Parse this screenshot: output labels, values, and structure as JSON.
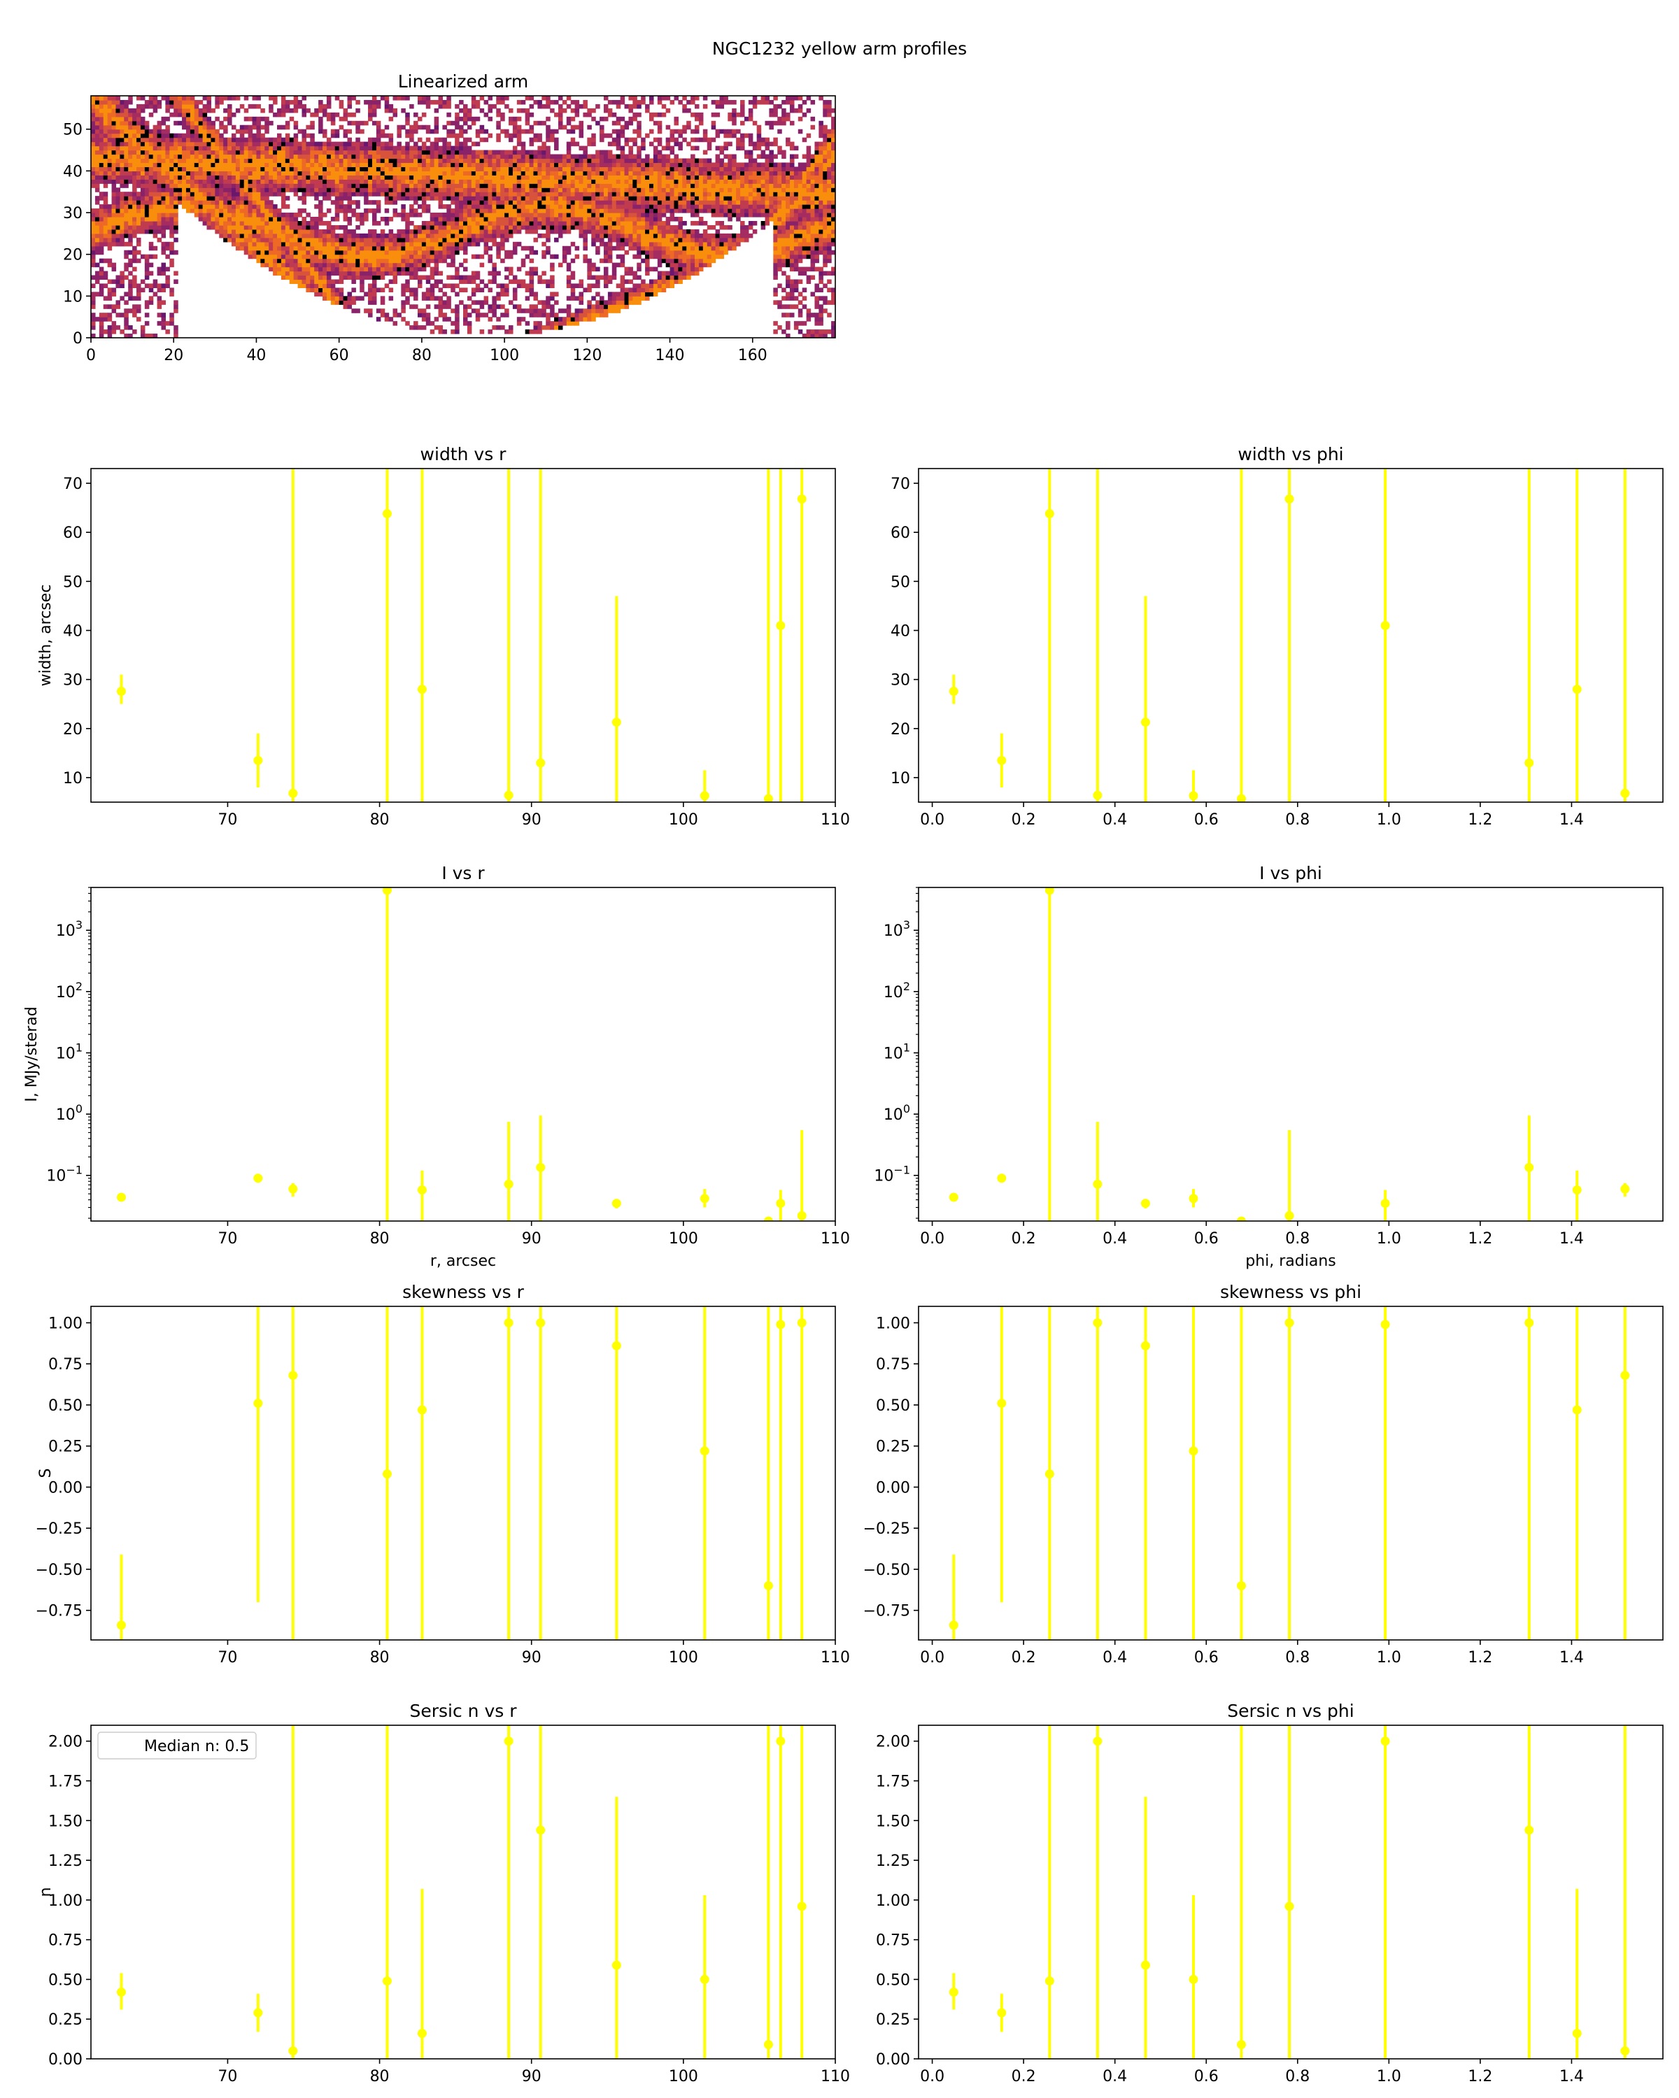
{
  "figure": {
    "suptitle": "NGC1232 yellow arm profiles",
    "marker_color": "#ffff00"
  },
  "image_panel": {
    "title": "Linearized arm",
    "xticks": [
      "0",
      "20",
      "40",
      "60",
      "80",
      "100",
      "120",
      "140",
      "160"
    ],
    "yticks": [
      "0",
      "10",
      "20",
      "30",
      "40",
      "50"
    ],
    "xlim": [
      0,
      180
    ],
    "ylim": [
      0,
      58
    ],
    "colormap": "inferno"
  },
  "chart_data": [
    {
      "type": "scatter",
      "title": "width vs r",
      "xlabel": "",
      "ylabel": "width, arcsec",
      "xlim": [
        61,
        110
      ],
      "ylim": [
        5,
        73
      ],
      "yscale": "linear",
      "xticks": [
        "70",
        "80",
        "90",
        "100",
        "110"
      ],
      "yticks": [
        "10",
        "20",
        "30",
        "40",
        "50",
        "60",
        "70"
      ],
      "points": [
        {
          "x": 63,
          "y": 27.6,
          "lo": 25,
          "hi": 31
        },
        {
          "x": 72,
          "y": 13.5,
          "lo": 8,
          "hi": 19
        },
        {
          "x": 74.3,
          "y": 6.8,
          "lo": 5,
          "hi": 73
        },
        {
          "x": 80.5,
          "y": 63.8,
          "lo": 5,
          "hi": 73
        },
        {
          "x": 82.8,
          "y": 28,
          "lo": 5,
          "hi": 73
        },
        {
          "x": 88.5,
          "y": 6.4,
          "lo": 5,
          "hi": 73
        },
        {
          "x": 90.6,
          "y": 13,
          "lo": 5,
          "hi": 73
        },
        {
          "x": 95.6,
          "y": 21.3,
          "lo": 5,
          "hi": 47
        },
        {
          "x": 101.4,
          "y": 6.3,
          "lo": 5,
          "hi": 11.5
        },
        {
          "x": 105.6,
          "y": 5.7,
          "lo": 5,
          "hi": 73
        },
        {
          "x": 106.4,
          "y": 41,
          "lo": 5,
          "hi": 73
        },
        {
          "x": 107.8,
          "y": 66.8,
          "lo": 5,
          "hi": 73
        }
      ]
    },
    {
      "type": "scatter",
      "title": "width vs phi",
      "xlabel": "",
      "ylabel": "",
      "xlim": [
        -0.03,
        1.6
      ],
      "ylim": [
        5,
        73
      ],
      "yscale": "linear",
      "xticks": [
        "0.0",
        "0.2",
        "0.4",
        "0.6",
        "0.8",
        "1.0",
        "1.2",
        "1.4"
      ],
      "yticks": [
        "10",
        "20",
        "30",
        "40",
        "50",
        "60",
        "70"
      ],
      "points": [
        {
          "x": 0.047,
          "y": 27.6,
          "lo": 25,
          "hi": 31
        },
        {
          "x": 0.152,
          "y": 13.5,
          "lo": 8,
          "hi": 19
        },
        {
          "x": 0.257,
          "y": 63.8,
          "lo": 5,
          "hi": 73
        },
        {
          "x": 0.362,
          "y": 6.4,
          "lo": 5,
          "hi": 73
        },
        {
          "x": 0.467,
          "y": 21.3,
          "lo": 5,
          "hi": 47
        },
        {
          "x": 0.572,
          "y": 6.3,
          "lo": 5,
          "hi": 11.5
        },
        {
          "x": 0.677,
          "y": 5.7,
          "lo": 5,
          "hi": 73
        },
        {
          "x": 0.782,
          "y": 66.8,
          "lo": 5,
          "hi": 73
        },
        {
          "x": 0.992,
          "y": 41,
          "lo": 5,
          "hi": 73
        },
        {
          "x": 1.307,
          "y": 13,
          "lo": 5,
          "hi": 73
        },
        {
          "x": 1.412,
          "y": 28,
          "lo": 5,
          "hi": 73
        },
        {
          "x": 1.517,
          "y": 6.8,
          "lo": 5,
          "hi": 73
        }
      ]
    },
    {
      "type": "scatter",
      "title": "I vs r",
      "xlabel": "r, arcsec",
      "ylabel": "I, MJy/sterad",
      "xlim": [
        61,
        110
      ],
      "ylim": [
        0.018,
        5000
      ],
      "yscale": "log",
      "xticks": [
        "70",
        "80",
        "90",
        "100",
        "110"
      ],
      "yticks": [
        {
          "mant": "10",
          "exp": "−1",
          "v": 0.1
        },
        {
          "mant": "10",
          "exp": "0",
          "v": 1
        },
        {
          "mant": "10",
          "exp": "1",
          "v": 10
        },
        {
          "mant": "10",
          "exp": "2",
          "v": 100
        },
        {
          "mant": "10",
          "exp": "3",
          "v": 1000
        }
      ],
      "points": [
        {
          "x": 63,
          "y": 0.044,
          "lo": 0.04,
          "hi": 0.048
        },
        {
          "x": 72,
          "y": 0.09,
          "lo": 0.082,
          "hi": 0.098
        },
        {
          "x": 74.3,
          "y": 0.06,
          "lo": 0.045,
          "hi": 0.075
        },
        {
          "x": 80.5,
          "y": 4500,
          "lo": 0.018,
          "hi": 5000
        },
        {
          "x": 82.8,
          "y": 0.058,
          "lo": 0.018,
          "hi": 0.12
        },
        {
          "x": 88.5,
          "y": 0.072,
          "lo": 0.018,
          "hi": 0.75
        },
        {
          "x": 90.6,
          "y": 0.135,
          "lo": 0.018,
          "hi": 0.95
        },
        {
          "x": 95.6,
          "y": 0.035,
          "lo": 0.029,
          "hi": 0.041
        },
        {
          "x": 101.4,
          "y": 0.042,
          "lo": 0.03,
          "hi": 0.06
        },
        {
          "x": 105.6,
          "y": 0.018,
          "lo": 0.016,
          "hi": 0.02
        },
        {
          "x": 106.4,
          "y": 0.035,
          "lo": 0.018,
          "hi": 0.058
        },
        {
          "x": 107.8,
          "y": 0.022,
          "lo": 0.018,
          "hi": 0.55
        }
      ]
    },
    {
      "type": "scatter",
      "title": "I vs phi",
      "xlabel": "phi, radians",
      "ylabel": "",
      "xlim": [
        -0.03,
        1.6
      ],
      "ylim": [
        0.018,
        5000
      ],
      "yscale": "log",
      "xticks": [
        "0.0",
        "0.2",
        "0.4",
        "0.6",
        "0.8",
        "1.0",
        "1.2",
        "1.4"
      ],
      "yticks": [
        {
          "mant": "10",
          "exp": "−1",
          "v": 0.1
        },
        {
          "mant": "10",
          "exp": "0",
          "v": 1
        },
        {
          "mant": "10",
          "exp": "1",
          "v": 10
        },
        {
          "mant": "10",
          "exp": "2",
          "v": 100
        },
        {
          "mant": "10",
          "exp": "3",
          "v": 1000
        }
      ],
      "points": [
        {
          "x": 0.047,
          "y": 0.044,
          "lo": 0.04,
          "hi": 0.048
        },
        {
          "x": 0.152,
          "y": 0.09,
          "lo": 0.082,
          "hi": 0.098
        },
        {
          "x": 0.257,
          "y": 4500,
          "lo": 0.018,
          "hi": 5000
        },
        {
          "x": 0.362,
          "y": 0.072,
          "lo": 0.018,
          "hi": 0.75
        },
        {
          "x": 0.467,
          "y": 0.035,
          "lo": 0.029,
          "hi": 0.041
        },
        {
          "x": 0.572,
          "y": 0.042,
          "lo": 0.03,
          "hi": 0.06
        },
        {
          "x": 0.677,
          "y": 0.018,
          "lo": 0.016,
          "hi": 0.02
        },
        {
          "x": 0.782,
          "y": 0.022,
          "lo": 0.018,
          "hi": 0.55
        },
        {
          "x": 0.992,
          "y": 0.035,
          "lo": 0.018,
          "hi": 0.058
        },
        {
          "x": 1.307,
          "y": 0.135,
          "lo": 0.018,
          "hi": 0.95
        },
        {
          "x": 1.412,
          "y": 0.058,
          "lo": 0.018,
          "hi": 0.12
        },
        {
          "x": 1.517,
          "y": 0.06,
          "lo": 0.045,
          "hi": 0.075
        }
      ]
    },
    {
      "type": "scatter",
      "title": "skewness vs r",
      "xlabel": "",
      "ylabel": "S",
      "xlim": [
        61,
        110
      ],
      "ylim": [
        -0.93,
        1.1
      ],
      "yscale": "linear",
      "xticks": [
        "70",
        "80",
        "90",
        "100",
        "110"
      ],
      "yticks": [
        "−0.75",
        "−0.50",
        "−0.25",
        "0.00",
        "0.25",
        "0.50",
        "0.75",
        "1.00"
      ],
      "points": [
        {
          "x": 63,
          "y": -0.84,
          "lo": -0.93,
          "hi": -0.41
        },
        {
          "x": 72,
          "y": 0.51,
          "lo": -0.7,
          "hi": 1.1
        },
        {
          "x": 74.3,
          "y": 0.68,
          "lo": -0.93,
          "hi": 1.1
        },
        {
          "x": 80.5,
          "y": 0.08,
          "lo": -0.93,
          "hi": 1.1
        },
        {
          "x": 82.8,
          "y": 0.47,
          "lo": -0.93,
          "hi": 1.1
        },
        {
          "x": 88.5,
          "y": 1.0,
          "lo": -0.93,
          "hi": 1.1
        },
        {
          "x": 90.6,
          "y": 1.0,
          "lo": -0.93,
          "hi": 1.1
        },
        {
          "x": 95.6,
          "y": 0.86,
          "lo": -0.93,
          "hi": 1.1
        },
        {
          "x": 101.4,
          "y": 0.22,
          "lo": -0.93,
          "hi": 1.1
        },
        {
          "x": 105.6,
          "y": -0.6,
          "lo": -0.93,
          "hi": 1.1
        },
        {
          "x": 106.4,
          "y": 0.99,
          "lo": -0.93,
          "hi": 1.1
        },
        {
          "x": 107.8,
          "y": 1.0,
          "lo": -0.93,
          "hi": 1.1
        }
      ]
    },
    {
      "type": "scatter",
      "title": "skewness vs phi",
      "xlabel": "",
      "ylabel": "",
      "xlim": [
        -0.03,
        1.6
      ],
      "ylim": [
        -0.93,
        1.1
      ],
      "yscale": "linear",
      "xticks": [
        "0.0",
        "0.2",
        "0.4",
        "0.6",
        "0.8",
        "1.0",
        "1.2",
        "1.4"
      ],
      "yticks": [
        "−0.75",
        "−0.50",
        "−0.25",
        "0.00",
        "0.25",
        "0.50",
        "0.75",
        "1.00"
      ],
      "points": [
        {
          "x": 0.047,
          "y": -0.84,
          "lo": -0.93,
          "hi": -0.41
        },
        {
          "x": 0.152,
          "y": 0.51,
          "lo": -0.7,
          "hi": 1.1
        },
        {
          "x": 0.257,
          "y": 0.08,
          "lo": -0.93,
          "hi": 1.1
        },
        {
          "x": 0.362,
          "y": 1.0,
          "lo": -0.93,
          "hi": 1.1
        },
        {
          "x": 0.467,
          "y": 0.86,
          "lo": -0.93,
          "hi": 1.1
        },
        {
          "x": 0.572,
          "y": 0.22,
          "lo": -0.93,
          "hi": 1.1
        },
        {
          "x": 0.677,
          "y": -0.6,
          "lo": -0.93,
          "hi": 1.1
        },
        {
          "x": 0.782,
          "y": 1.0,
          "lo": -0.93,
          "hi": 1.1
        },
        {
          "x": 0.992,
          "y": 0.99,
          "lo": -0.93,
          "hi": 1.1
        },
        {
          "x": 1.307,
          "y": 1.0,
          "lo": -0.93,
          "hi": 1.1
        },
        {
          "x": 1.412,
          "y": 0.47,
          "lo": -0.93,
          "hi": 1.1
        },
        {
          "x": 1.517,
          "y": 0.68,
          "lo": -0.93,
          "hi": 1.1
        }
      ]
    },
    {
      "type": "scatter",
      "title": "Sersic n vs r",
      "xlabel": "",
      "ylabel": "n",
      "xlim": [
        61,
        110
      ],
      "ylim": [
        0,
        2.1
      ],
      "yscale": "linear",
      "xticks": [
        "70",
        "80",
        "90",
        "100",
        "110"
      ],
      "yticks": [
        "0.00",
        "0.25",
        "0.50",
        "0.75",
        "1.00",
        "1.25",
        "1.50",
        "1.75",
        "2.00"
      ],
      "legend": {
        "label": "Median n: 0.5",
        "loc": "upper-left"
      },
      "points": [
        {
          "x": 63,
          "y": 0.42,
          "lo": 0.31,
          "hi": 0.54
        },
        {
          "x": 72,
          "y": 0.29,
          "lo": 0.17,
          "hi": 0.41
        },
        {
          "x": 74.3,
          "y": 0.05,
          "lo": 0,
          "hi": 2.1
        },
        {
          "x": 80.5,
          "y": 0.49,
          "lo": 0,
          "hi": 2.1
        },
        {
          "x": 82.8,
          "y": 0.16,
          "lo": 0,
          "hi": 1.07
        },
        {
          "x": 88.5,
          "y": 2.0,
          "lo": 0,
          "hi": 2.1
        },
        {
          "x": 90.6,
          "y": 1.44,
          "lo": 0,
          "hi": 2.1
        },
        {
          "x": 95.6,
          "y": 0.59,
          "lo": 0,
          "hi": 1.65
        },
        {
          "x": 101.4,
          "y": 0.5,
          "lo": 0,
          "hi": 1.03
        },
        {
          "x": 105.6,
          "y": 0.09,
          "lo": 0,
          "hi": 2.1
        },
        {
          "x": 106.4,
          "y": 2.0,
          "lo": 0,
          "hi": 2.1
        },
        {
          "x": 107.8,
          "y": 0.96,
          "lo": 0,
          "hi": 2.1
        }
      ]
    },
    {
      "type": "scatter",
      "title": "Sersic n vs phi",
      "xlabel": "",
      "ylabel": "",
      "xlim": [
        -0.03,
        1.6
      ],
      "ylim": [
        0,
        2.1
      ],
      "yscale": "linear",
      "xticks": [
        "0.0",
        "0.2",
        "0.4",
        "0.6",
        "0.8",
        "1.0",
        "1.2",
        "1.4"
      ],
      "yticks": [
        "0.00",
        "0.25",
        "0.50",
        "0.75",
        "1.00",
        "1.25",
        "1.50",
        "1.75",
        "2.00"
      ],
      "points": [
        {
          "x": 0.047,
          "y": 0.42,
          "lo": 0.31,
          "hi": 0.54
        },
        {
          "x": 0.152,
          "y": 0.29,
          "lo": 0.17,
          "hi": 0.41
        },
        {
          "x": 0.257,
          "y": 0.49,
          "lo": 0,
          "hi": 2.1
        },
        {
          "x": 0.362,
          "y": 2.0,
          "lo": 0,
          "hi": 2.1
        },
        {
          "x": 0.467,
          "y": 0.59,
          "lo": 0,
          "hi": 1.65
        },
        {
          "x": 0.572,
          "y": 0.5,
          "lo": 0,
          "hi": 1.03
        },
        {
          "x": 0.677,
          "y": 0.09,
          "lo": 0,
          "hi": 2.1
        },
        {
          "x": 0.782,
          "y": 0.96,
          "lo": 0,
          "hi": 2.1
        },
        {
          "x": 0.992,
          "y": 2.0,
          "lo": 0,
          "hi": 2.1
        },
        {
          "x": 1.307,
          "y": 1.44,
          "lo": 0,
          "hi": 2.1
        },
        {
          "x": 1.412,
          "y": 0.16,
          "lo": 0,
          "hi": 1.07
        },
        {
          "x": 1.517,
          "y": 0.05,
          "lo": 0,
          "hi": 2.1
        }
      ]
    }
  ]
}
